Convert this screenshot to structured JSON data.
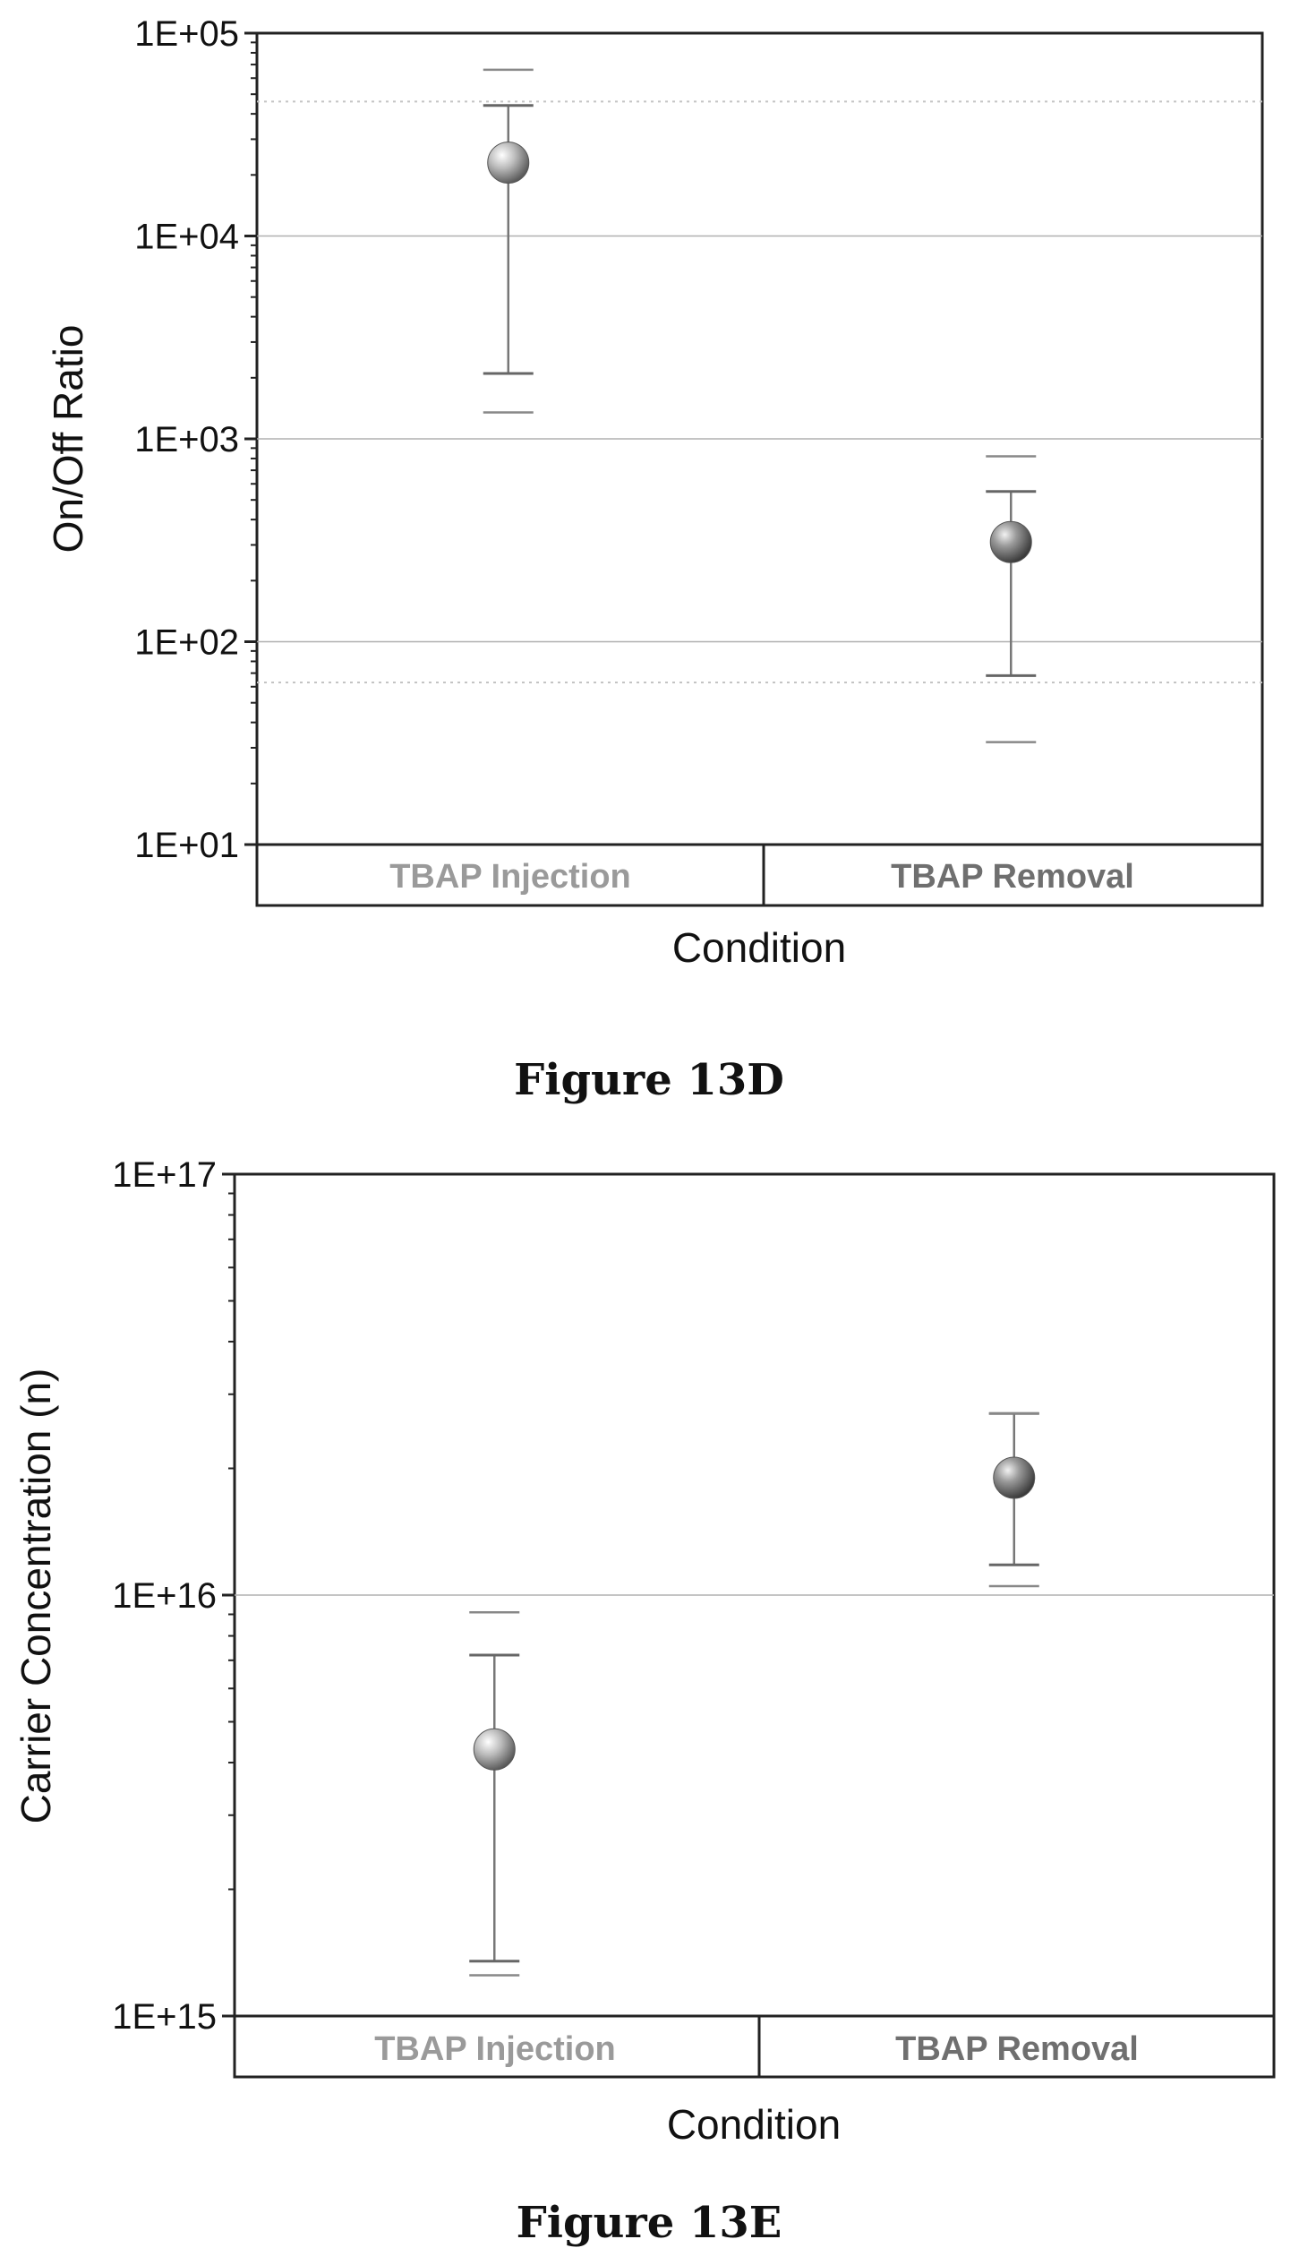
{
  "chart_data": [
    {
      "type": "scatter",
      "scale": "log",
      "ylabel": "On/Off Ratio",
      "xlabel": "Condition",
      "caption": "Figure 13D",
      "categories": [
        "TBAP Injection",
        "TBAP Removal"
      ],
      "category_colors": [
        "#9a9a9a",
        "#6f6f6f"
      ],
      "yticks": [
        "1E+01",
        "1E+02",
        "1E+03",
        "1E+04",
        "1E+05"
      ],
      "ylim": [
        10,
        100000
      ],
      "grid_at": [
        100,
        1000,
        10000
      ],
      "dotted_refs": [
        46000,
        63
      ],
      "points": [
        {
          "category": "TBAP Injection",
          "mean": 23000,
          "err_low": 2100,
          "err_high": 44000,
          "min": 1350,
          "max": 66000,
          "color": "#b3b3b3"
        },
        {
          "category": "TBAP Removal",
          "mean": 310,
          "err_low": 68,
          "err_high": 550,
          "min": 32,
          "max": 820,
          "color": "#8f8f8f"
        }
      ]
    },
    {
      "type": "scatter",
      "scale": "log",
      "ylabel": "Carrier Concentration (n)",
      "xlabel": "Condition",
      "caption": "Figure 13E",
      "categories": [
        "TBAP Injection",
        "TBAP Removal"
      ],
      "category_colors": [
        "#9a9a9a",
        "#6f6f6f"
      ],
      "yticks": [
        "1E+15",
        "1E+16",
        "1E+17"
      ],
      "ylim": [
        1000000000000000.0,
        1e+17
      ],
      "grid_at": [
        1e+16
      ],
      "dotted_refs": [],
      "points": [
        {
          "category": "TBAP Injection",
          "mean": 4300000000000000.0,
          "err_low": 1350000000000000.0,
          "err_high": 7200000000000000.0,
          "min": 1250000000000000.0,
          "max": 9100000000000000.0,
          "color": "#b3b3b3"
        },
        {
          "category": "TBAP Removal",
          "mean": 1.9e+16,
          "err_low": 1.18e+16,
          "err_high": 2.7e+16,
          "min": 1.05e+16,
          "max": 2.7e+16,
          "color": "#8f8f8f"
        }
      ]
    }
  ]
}
